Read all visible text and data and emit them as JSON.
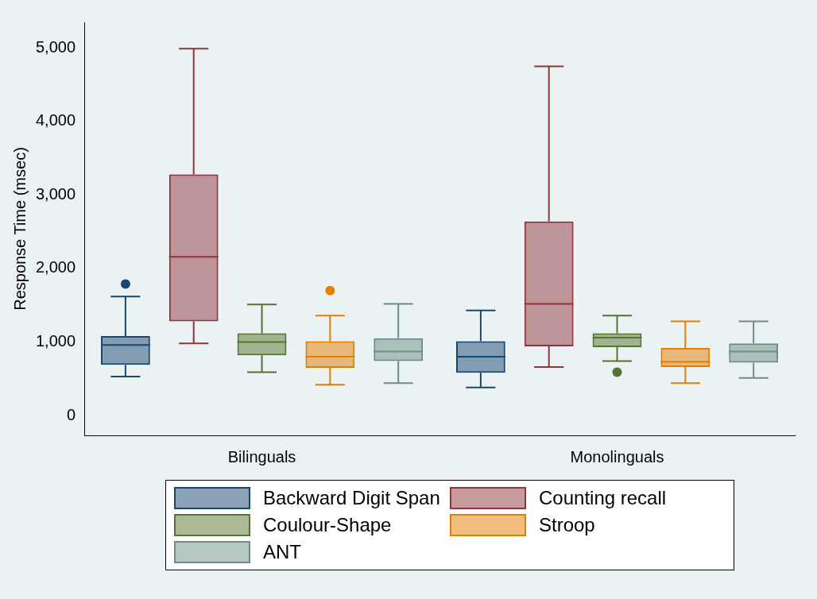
{
  "chart_data": {
    "type": "box",
    "ylabel": "Response Time (msec)",
    "categories": [
      "Bilinguals",
      "Monolinguals"
    ],
    "ylim": [
      -270,
      5350
    ],
    "yticks": [
      {
        "value": 0,
        "label": "0"
      },
      {
        "value": 1000,
        "label": "1,000"
      },
      {
        "value": 2000,
        "label": "2,000"
      },
      {
        "value": 3000,
        "label": "3,000"
      },
      {
        "value": 4000,
        "label": "4,000"
      },
      {
        "value": 5000,
        "label": "5,000"
      }
    ],
    "grid": false,
    "legend": "bottom",
    "series": [
      {
        "name": "Backward Digit Span",
        "color": "#1a476f",
        "boxes": [
          {
            "low": 530,
            "q1": 690,
            "median": 960,
            "q3": 1080,
            "high": 1620,
            "outliers": [
              1790
            ]
          },
          {
            "low": 380,
            "q1": 580,
            "median": 800,
            "q3": 1010,
            "high": 1430
          }
        ]
      },
      {
        "name": "Counting recall",
        "color": "#90353b",
        "boxes": [
          {
            "low": 980,
            "q1": 1280,
            "median": 2160,
            "q3": 3280,
            "high": 4990
          },
          {
            "low": 660,
            "q1": 940,
            "median": 1520,
            "q3": 2640,
            "high": 4750
          }
        ]
      },
      {
        "name": "Coulour-Shape",
        "color": "#55752f",
        "boxes": [
          {
            "low": 590,
            "q1": 820,
            "median": 1000,
            "q3": 1120,
            "high": 1510
          },
          {
            "low": 740,
            "q1": 930,
            "median": 1060,
            "q3": 1120,
            "high": 1360,
            "outliers": [
              590
            ]
          }
        ]
      },
      {
        "name": "Stroop",
        "color": "#e37e00",
        "boxes": [
          {
            "low": 420,
            "q1": 650,
            "median": 800,
            "q3": 1010,
            "high": 1360,
            "outliers": [
              1700
            ]
          },
          {
            "low": 440,
            "q1": 660,
            "median": 730,
            "q3": 920,
            "high": 1280
          }
        ]
      },
      {
        "name": "ANT",
        "color": "#6e8e84",
        "boxes": [
          {
            "low": 440,
            "q1": 740,
            "median": 870,
            "q3": 1050,
            "high": 1520
          },
          {
            "low": 510,
            "q1": 720,
            "median": 870,
            "q3": 980,
            "high": 1280
          }
        ]
      }
    ]
  }
}
